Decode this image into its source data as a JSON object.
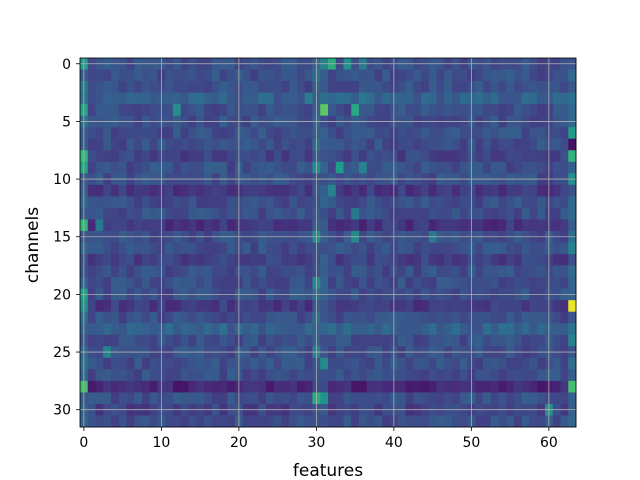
{
  "chart_data": {
    "type": "heatmap",
    "title": "",
    "xlabel": "features",
    "ylabel": "channels",
    "columns": 64,
    "rows": 32,
    "xlim": [
      -0.5,
      63.5
    ],
    "ylim": [
      31.5,
      -0.5
    ],
    "x_ticks": [
      0,
      10,
      20,
      30,
      40,
      50,
      60
    ],
    "y_ticks": [
      0,
      5,
      10,
      15,
      20,
      25,
      30
    ],
    "grid": true,
    "colormap": "viridis",
    "colormap_stops": [
      "#440154",
      "#482878",
      "#3e4a89",
      "#31688e",
      "#26828e",
      "#1f9e89",
      "#35b779",
      "#6ece58",
      "#b5de2b",
      "#fde725"
    ],
    "base_level": 0.24,
    "row_levels": [
      {
        "row": 3,
        "level": 0.3
      },
      {
        "row": 8,
        "level": 0.2
      },
      {
        "row": 11,
        "level": 0.17
      },
      {
        "row": 14,
        "level": 0.15
      },
      {
        "row": 17,
        "level": 0.19
      },
      {
        "row": 21,
        "level": 0.17
      },
      {
        "row": 23,
        "level": 0.31
      },
      {
        "row": 28,
        "level": 0.11
      },
      {
        "row": 30,
        "level": 0.2
      }
    ],
    "column_levels": [
      {
        "col": 0,
        "level": 0.33
      },
      {
        "col": 30,
        "level": 0.3
      },
      {
        "col": 31,
        "level": 0.27
      },
      {
        "col": 63,
        "level": 0.34
      }
    ],
    "highlights": [
      {
        "row": 0,
        "col": 0,
        "value": 0.55
      },
      {
        "row": 0,
        "col": 31,
        "value": 0.45
      },
      {
        "row": 0,
        "col": 32,
        "value": 0.62
      },
      {
        "row": 0,
        "col": 34,
        "value": 0.5
      },
      {
        "row": 0,
        "col": 36,
        "value": 0.42
      },
      {
        "row": 2,
        "col": 0,
        "value": 0.4
      },
      {
        "row": 3,
        "col": 29,
        "value": 0.42
      },
      {
        "row": 3,
        "col": 36,
        "value": 0.4
      },
      {
        "row": 4,
        "col": 0,
        "value": 0.58
      },
      {
        "row": 4,
        "col": 12,
        "value": 0.5
      },
      {
        "row": 4,
        "col": 31,
        "value": 0.74
      },
      {
        "row": 4,
        "col": 35,
        "value": 0.6
      },
      {
        "row": 6,
        "col": 63,
        "value": 0.55
      },
      {
        "row": 7,
        "col": 63,
        "value": 0.05
      },
      {
        "row": 8,
        "col": 0,
        "value": 0.66
      },
      {
        "row": 8,
        "col": 63,
        "value": 0.65
      },
      {
        "row": 9,
        "col": 0,
        "value": 0.58
      },
      {
        "row": 9,
        "col": 30,
        "value": 0.48
      },
      {
        "row": 9,
        "col": 33,
        "value": 0.55
      },
      {
        "row": 9,
        "col": 36,
        "value": 0.45
      },
      {
        "row": 10,
        "col": 63,
        "value": 0.5
      },
      {
        "row": 11,
        "col": 32,
        "value": 0.45
      },
      {
        "row": 13,
        "col": 35,
        "value": 0.4
      },
      {
        "row": 14,
        "col": 0,
        "value": 0.66
      },
      {
        "row": 14,
        "col": 2,
        "value": 0.4
      },
      {
        "row": 15,
        "col": 30,
        "value": 0.5
      },
      {
        "row": 15,
        "col": 35,
        "value": 0.48
      },
      {
        "row": 15,
        "col": 45,
        "value": 0.42
      },
      {
        "row": 16,
        "col": 63,
        "value": 0.45
      },
      {
        "row": 19,
        "col": 30,
        "value": 0.48
      },
      {
        "row": 20,
        "col": 0,
        "value": 0.55
      },
      {
        "row": 21,
        "col": 0,
        "value": 0.5
      },
      {
        "row": 21,
        "col": 63,
        "value": 0.97
      },
      {
        "row": 24,
        "col": 63,
        "value": 0.45
      },
      {
        "row": 25,
        "col": 3,
        "value": 0.45
      },
      {
        "row": 25,
        "col": 30,
        "value": 0.45
      },
      {
        "row": 26,
        "col": 31,
        "value": 0.48
      },
      {
        "row": 28,
        "col": 0,
        "value": 0.7
      },
      {
        "row": 28,
        "col": 63,
        "value": 0.7
      },
      {
        "row": 29,
        "col": 30,
        "value": 0.62
      },
      {
        "row": 29,
        "col": 31,
        "value": 0.52
      },
      {
        "row": 30,
        "col": 60,
        "value": 0.5
      }
    ]
  }
}
